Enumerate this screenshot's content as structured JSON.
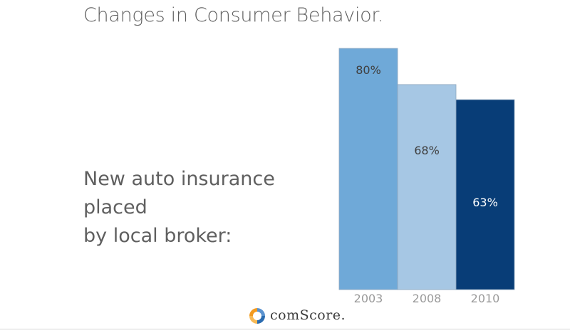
{
  "title": "Changes in Consumer Behavior.",
  "chart_data": {
    "type": "bar",
    "title": "",
    "label": "New auto insurance placed\nby local broker:",
    "categories": [
      "2003",
      "2008",
      "2010"
    ],
    "values": [
      80,
      68,
      63
    ],
    "data_labels": [
      "80%",
      "68%",
      "63%"
    ],
    "ylim": [
      0,
      80
    ],
    "colors": [
      "#6fa9d8",
      "#a6c7e4",
      "#083d77"
    ],
    "label_colors": [
      "#3f3f3f",
      "#3f3f3f",
      "#ffffff"
    ],
    "grid": false,
    "legend": "none"
  },
  "logo": {
    "text": "comScore.",
    "colors": [
      "#f29a1f",
      "#2b6cb0"
    ]
  }
}
